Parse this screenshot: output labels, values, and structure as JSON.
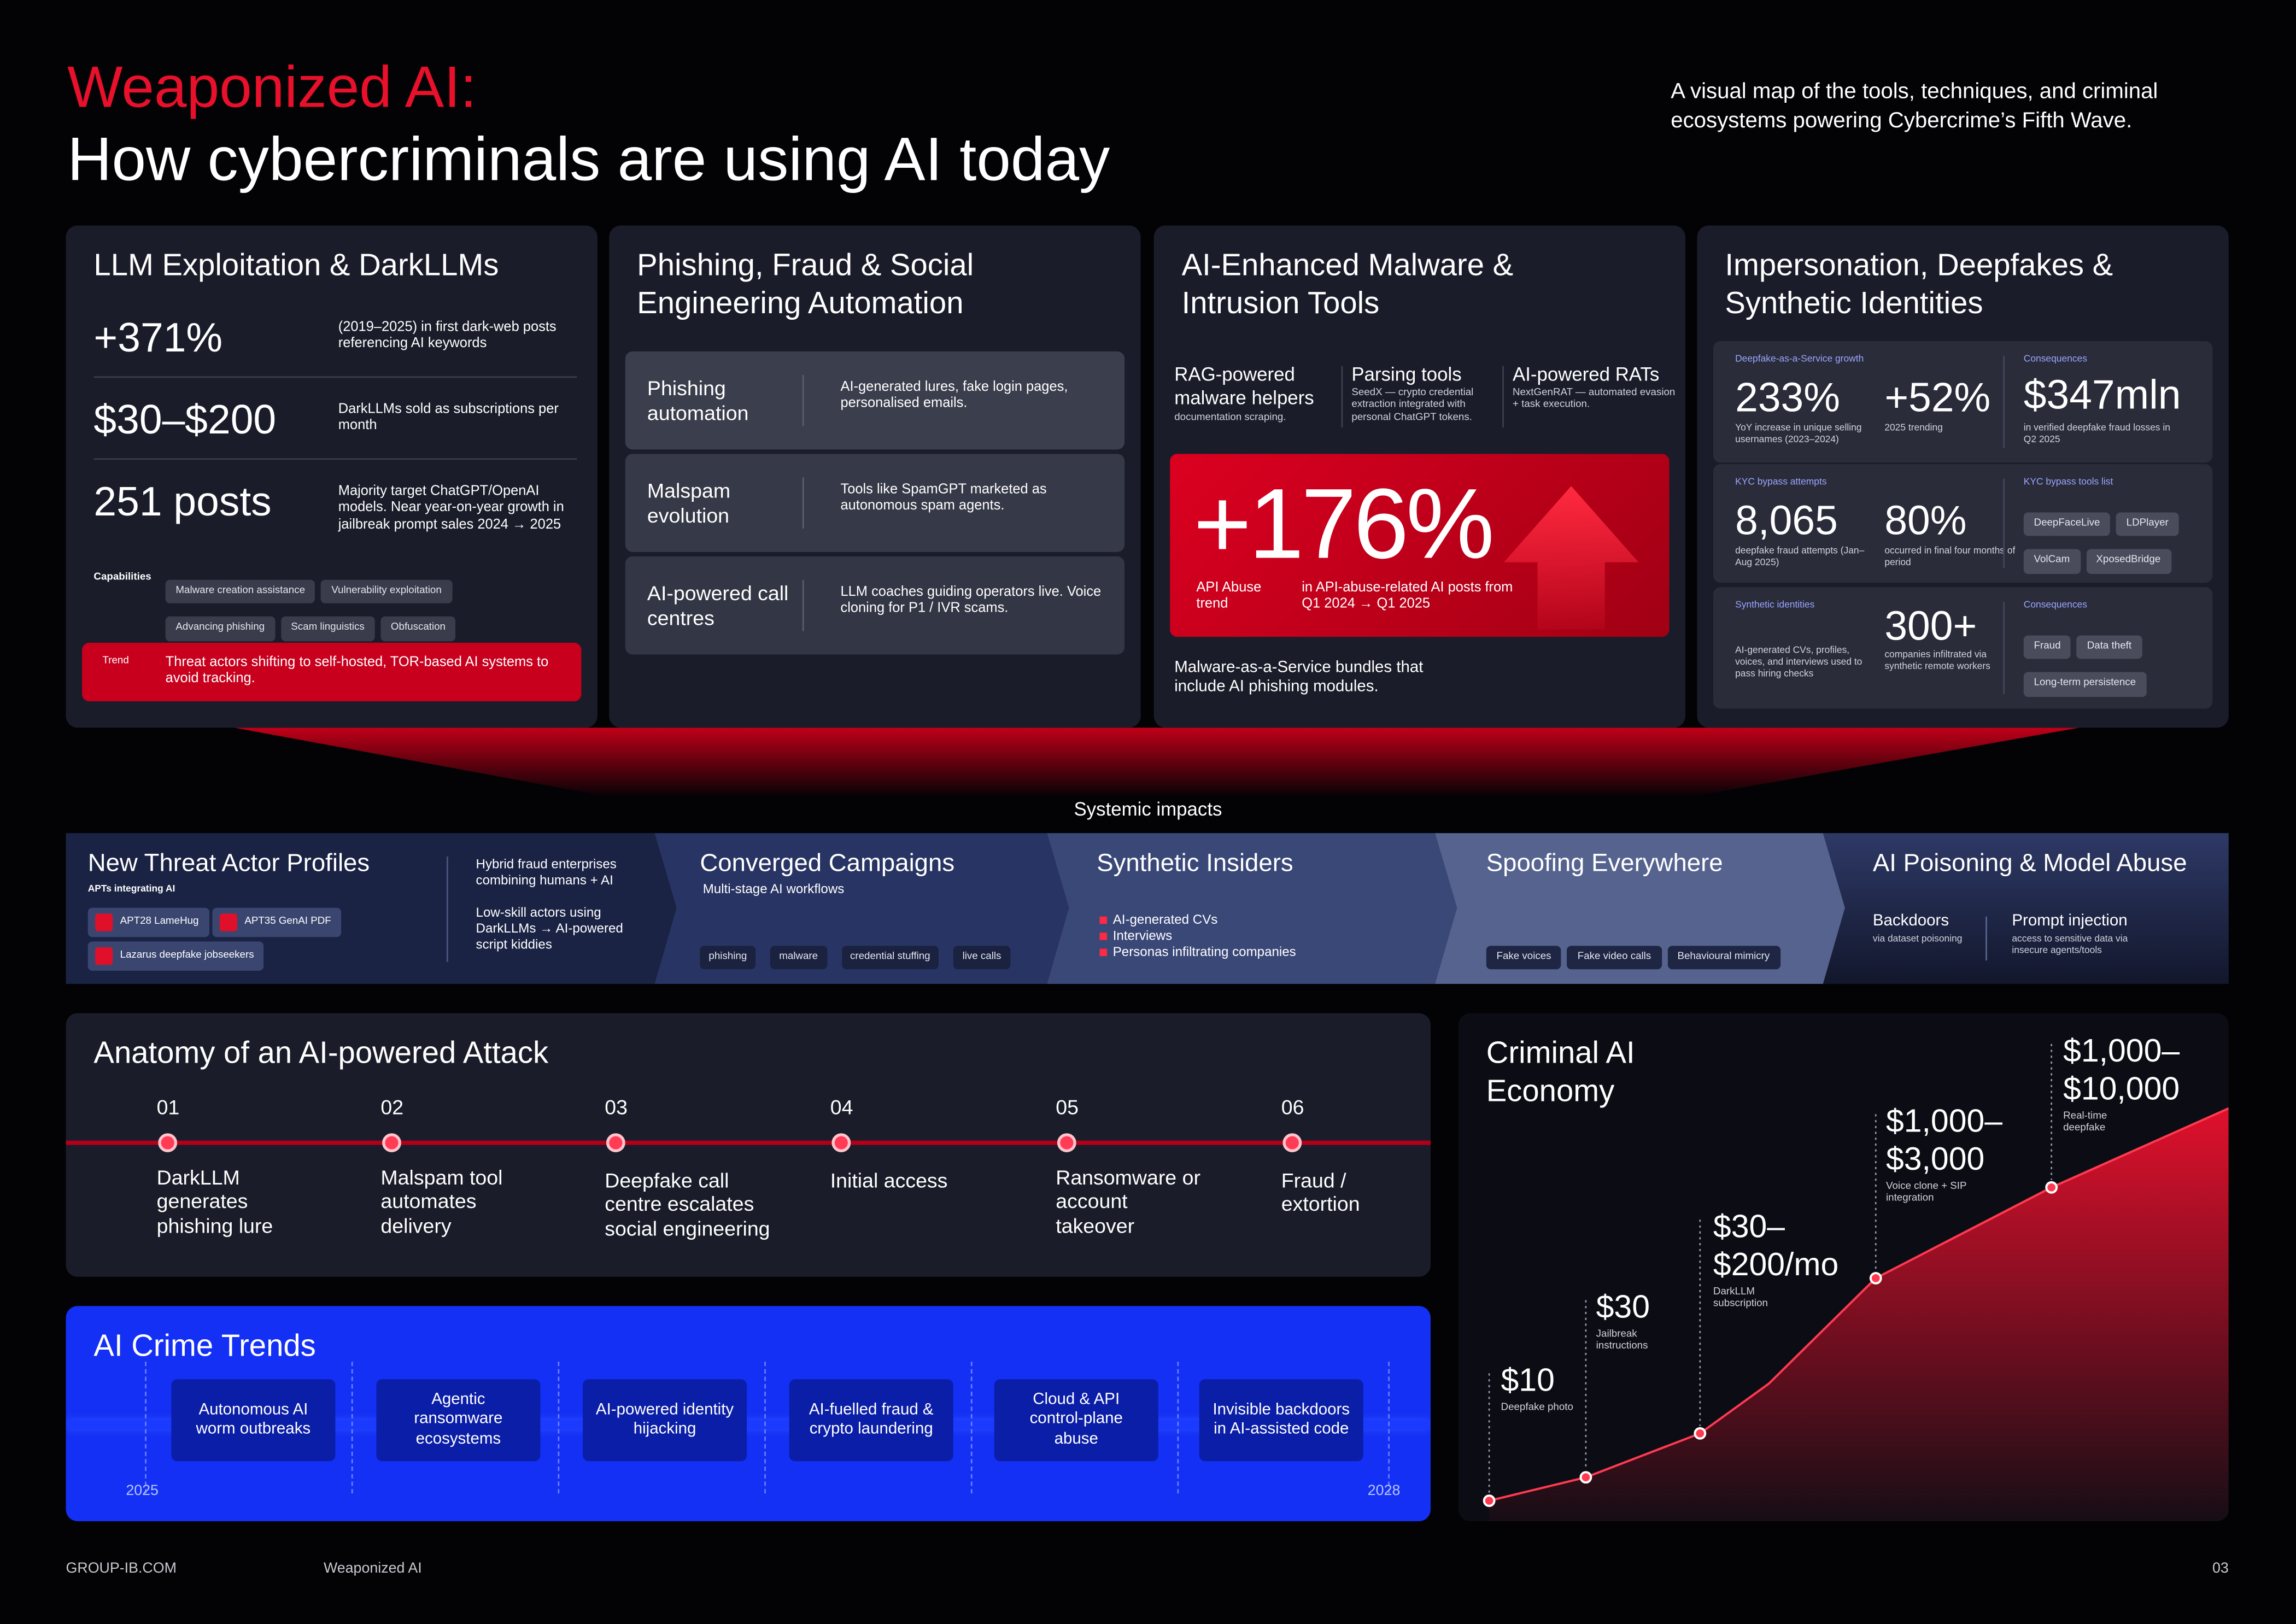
{
  "header": {
    "title": "Weaponized AI:",
    "subtitle": "How cybercriminals are using AI today",
    "tagline": "A visual map of the tools, techniques, and criminal ecosystems powering Cybercrime’s Fifth Wave."
  },
  "llm": {
    "title": "LLM Exploitation & DarkLLMs",
    "stats": [
      {
        "value": "+371%",
        "text": "(2019–2025) in first dark-web posts referencing AI keywords"
      },
      {
        "value": "$30–$200",
        "text": "DarkLLMs sold as subscriptions per month"
      },
      {
        "value": "251 posts",
        "text": "Majority target ChatGPT/OpenAI models. Near year-on-year growth in jailbreak prompt sales 2024 → 2025"
      }
    ],
    "capabilities_label": "Capabilities",
    "capabilities": [
      "Malware creation assistance",
      "Vulnerability exploitation",
      "Advancing phishing",
      "Scam linguistics",
      "Obfuscation"
    ],
    "trend_label": "Trend",
    "trend": "Threat actors shifting to self-hosted, TOR-based AI systems to avoid tracking."
  },
  "phishing": {
    "title": "Phishing, Fraud & Social Engineering Automation",
    "rows": [
      {
        "name": "Phishing automation",
        "text": "AI-generated lures, fake login pages, personalised emails."
      },
      {
        "name": "Malspam evolution",
        "text": "Tools like SpamGPT marketed as autonomous spam agents."
      },
      {
        "name": "AI-powered call centres",
        "text": "LLM coaches guiding operators live. Voice cloning for P1 / IVR scams."
      }
    ]
  },
  "malware": {
    "title": "AI-Enhanced Malware & Intrusion Tools",
    "tools": [
      {
        "name": "RAG-powered malware helpers",
        "text": "documentation scraping."
      },
      {
        "name": "Parsing tools",
        "text": "SeedX — crypto credential extraction integrated with personal ChatGPT tokens."
      },
      {
        "name": "AI-powered RATs",
        "text": "NextGenRAT — automated evasion + task execution."
      }
    ],
    "highlight": {
      "value": "+176%",
      "label": "API Abuse trend",
      "text": "in API-abuse-related AI posts from Q1 2024 → Q1 2025"
    },
    "note": "Malware-as-a-Service bundles that include AI phishing modules."
  },
  "impersonation": {
    "title": "Impersonation, Deepfakes & Synthetic Identities",
    "blocks": [
      {
        "label": "Deepfake-as-a-Service growth",
        "stats": [
          {
            "value": "233%",
            "text": "YoY increase in unique selling usernames (2023–2024)"
          },
          {
            "value": "+52%",
            "text": "2025 trending"
          }
        ],
        "side_label": "Consequences",
        "side_value": "$347mln",
        "side_text": "in verified deepfake fraud losses in Q2 2025"
      },
      {
        "label": "KYC bypass attempts",
        "stats": [
          {
            "value": "8,065",
            "text": "deepfake fraud attempts (Jan–Aug 2025)"
          },
          {
            "value": "80%",
            "text": "occurred in final four months of period"
          }
        ],
        "side_label": "KYC bypass tools list",
        "tags": [
          "DeepFaceLive",
          "LDPlayer",
          "VolCam",
          "XposedBridge"
        ]
      },
      {
        "label": "Synthetic identities",
        "text": "AI-generated CVs, profiles, voices, and interviews used to pass hiring checks",
        "stats": [
          {
            "value": "300+",
            "text": "companies infiltrated via synthetic remote workers"
          }
        ],
        "side_label": "Consequences",
        "tags": [
          "Fraud",
          "Data theft",
          "Long-term persistence"
        ]
      }
    ]
  },
  "impacts": {
    "label": "Systemic impacts",
    "actors": {
      "title": "New Threat Actor Profiles",
      "apts_label": "APTs integrating AI",
      "apts": [
        "APT28 LameHug",
        "APT35 GenAI PDF",
        "Lazarus deepfake jobseekers"
      ],
      "notes": [
        "Hybrid fraud enterprises combining humans + AI",
        "Low-skill actors using DarkLLMs → AI-powered script kiddies"
      ]
    },
    "campaigns": {
      "title": "Converged Campaigns",
      "subtitle": "Multi-stage AI workflows",
      "steps": [
        "phishing",
        "malware",
        "credential stuffing",
        "live calls"
      ]
    },
    "insiders": {
      "title": "Synthetic Insiders",
      "items": [
        "AI-generated CVs",
        "Interviews",
        "Personas infiltrating companies"
      ]
    },
    "spoofing": {
      "title": "Spoofing Everywhere",
      "tags": [
        "Fake voices",
        "Fake video calls",
        "Behavioural mimicry"
      ]
    },
    "poisoning": {
      "title": "AI Poisoning & Model Abuse",
      "items": [
        {
          "name": "Backdoors",
          "text": "via dataset poisoning"
        },
        {
          "name": "Prompt injection",
          "text": "access to sensitive data via insecure agents/tools"
        }
      ]
    }
  },
  "anatomy": {
    "title": "Anatomy of an AI-powered Attack",
    "steps": [
      {
        "num": "01",
        "text": "DarkLLM generates phishing lure"
      },
      {
        "num": "02",
        "text": "Malspam tool automates delivery"
      },
      {
        "num": "03",
        "text": "Deepfake call centre escalates social engineering"
      },
      {
        "num": "04",
        "text": "Initial access"
      },
      {
        "num": "05",
        "text": "Ransomware or account takeover"
      },
      {
        "num": "06",
        "text": "Fraud / extortion"
      }
    ]
  },
  "trends": {
    "title": "AI Crime Trends",
    "items": [
      "Autonomous AI worm outbreaks",
      "Agentic ransomware ecosystems",
      "AI-powered identity hijacking",
      "AI-fuelled fraud & crypto laundering",
      "Cloud & API control-plane abuse",
      "Invisible backdoors in AI-assisted code"
    ],
    "start": "2025",
    "end": "2028"
  },
  "economy": {
    "title": "Criminal AI Economy",
    "points": [
      {
        "price": "$10",
        "text": "Deepfake photo"
      },
      {
        "price": "$30",
        "text": "Jailbreak instructions"
      },
      {
        "price": "$30–$200/mo",
        "text": "DarkLLM subscription"
      },
      {
        "price": "$1,000–$3,000",
        "text": "Voice clone + SIP integration"
      },
      {
        "price": "$1,000–$10,000",
        "text": "Real-time deepfake"
      }
    ]
  },
  "footer": {
    "site": "GROUP-IB.COM",
    "doc": "Weaponized AI",
    "page": "03"
  }
}
